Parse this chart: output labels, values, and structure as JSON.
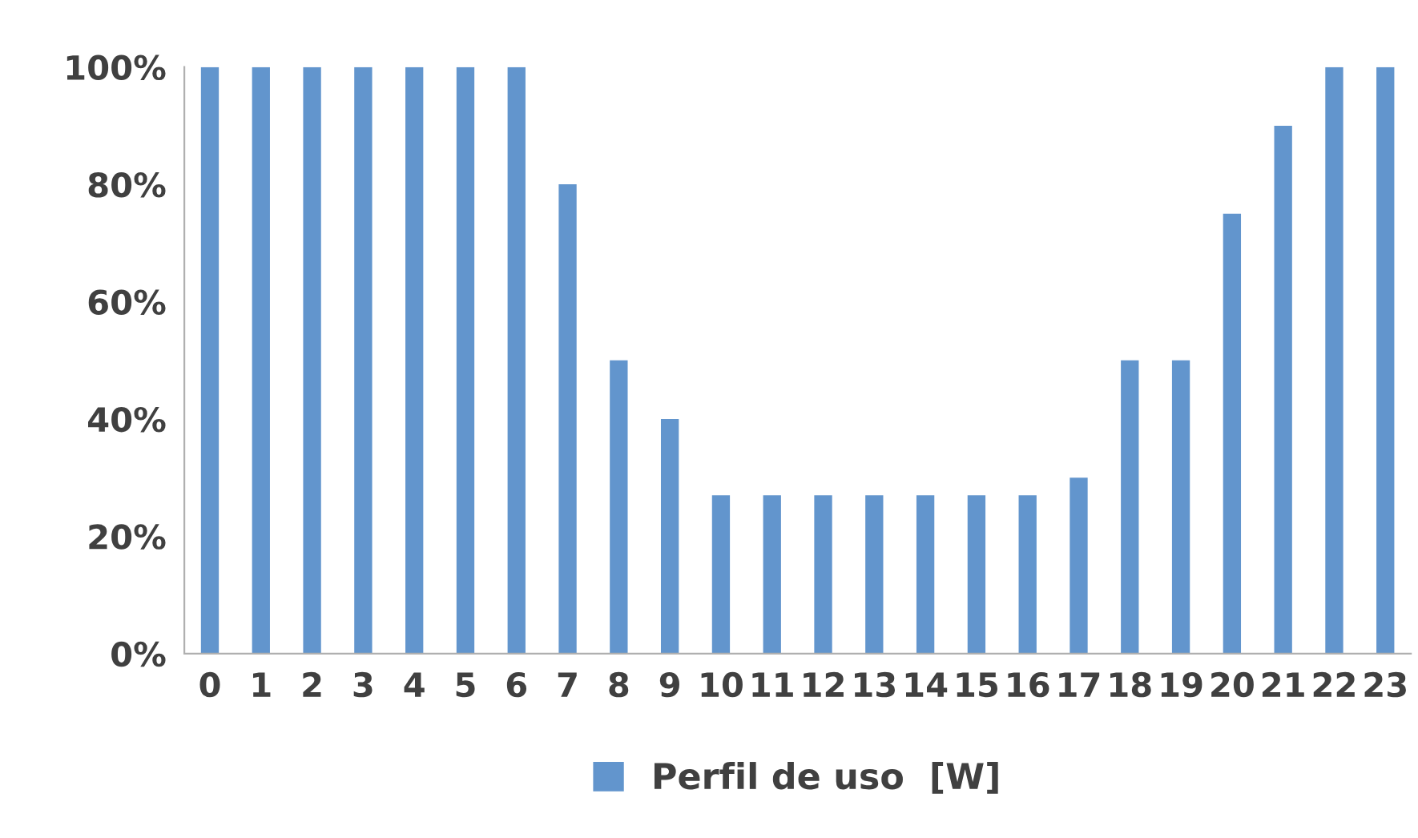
{
  "chart_data": {
    "type": "bar",
    "categories": [
      "0",
      "1",
      "2",
      "3",
      "4",
      "5",
      "6",
      "7",
      "8",
      "9",
      "10",
      "11",
      "12",
      "13",
      "14",
      "15",
      "16",
      "17",
      "18",
      "19",
      "20",
      "21",
      "22",
      "23"
    ],
    "series": [
      {
        "name": "Perfil de uso  [W]",
        "color": "#6295cd",
        "values": [
          100,
          100,
          100,
          100,
          100,
          100,
          100,
          80,
          50,
          40,
          27,
          27,
          27,
          27,
          27,
          27,
          27,
          30,
          50,
          50,
          75,
          90,
          100,
          100
        ]
      }
    ],
    "ylim": [
      0,
      100
    ],
    "yticks": [
      {
        "value": 0,
        "label": "0%"
      },
      {
        "value": 20,
        "label": "20%"
      },
      {
        "value": 40,
        "label": "40%"
      },
      {
        "value": 60,
        "label": "60%"
      },
      {
        "value": 80,
        "label": "80%"
      },
      {
        "value": 100,
        "label": "100%"
      }
    ],
    "grid": false,
    "legend": "bottom"
  }
}
